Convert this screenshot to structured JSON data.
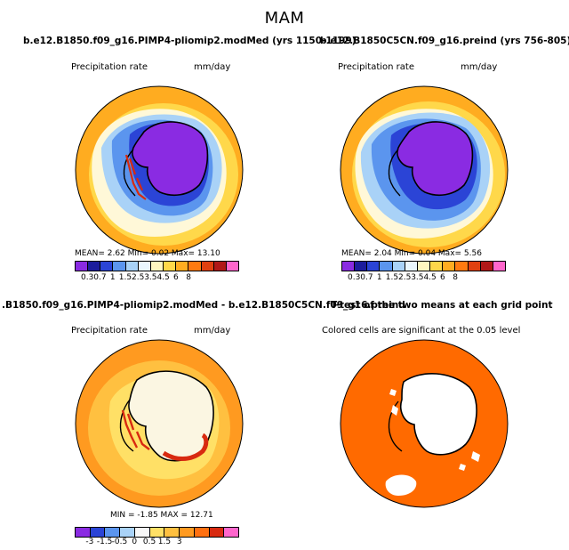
{
  "title": "MAM",
  "panels": {
    "top_left": {
      "title": "b.e12.B1850.f09_g16.PIMP4-pliomip2.modMed (yrs 1150-1199)",
      "variable": "Precipitation rate",
      "units": "mm/day",
      "stats": "MEAN=    2.62   Min=     0.02   Max=   13.10"
    },
    "top_right": {
      "title": "b.e12.B1850C5CN.f09_g16.preind (yrs 756-805)",
      "variable": "Precipitation rate",
      "units": "mm/day",
      "stats": "MEAN=    2.04   Min=     0.04   Max=     5.56"
    },
    "bottom_left": {
      "title": ".B1850.f09_g16.PIMP4-pliomip2.modMed - b.e12.B1850C5CN.f09_g16.preind",
      "variable": "Precipitation rate",
      "units": "mm/day",
      "stats": "MIN = -1.85 MAX =  12.71"
    },
    "bottom_right": {
      "title": "T-test of the two means at each grid point",
      "subtitle": "Colored cells are significant at the 0.05 level"
    }
  },
  "colorbar_abs": {
    "labels": [
      "0.3",
      "0.7",
      "1",
      "1.5",
      "2.5",
      "3.5",
      "4.5",
      "6",
      "8"
    ],
    "colors": [
      "#8a2be2",
      "#1c1c9c",
      "#2b44d6",
      "#5b95ee",
      "#a9d2f7",
      "#eaf6fd",
      "#fff6c0",
      "#ffd84a",
      "#ffac20",
      "#ff7a10",
      "#e04010",
      "#b01818",
      "#ff66cc"
    ]
  },
  "colorbar_diff": {
    "labels": [
      "-3",
      "-1.5",
      "-0.5",
      "0",
      "0.5",
      "1.5",
      "3"
    ],
    "colors": [
      "#8a2be2",
      "#2b44d6",
      "#5b95ee",
      "#a9d2f7",
      "#f7f7f7",
      "#ffe066",
      "#ffc040",
      "#ff9a20",
      "#ff7010",
      "#d82a10",
      "#ff66cc"
    ]
  },
  "map_colors": {
    "land_purple": "#8a2be2",
    "deep_blue": "#2b44d6",
    "mid_blue": "#5b95ee",
    "light_blue": "#a9d2f7",
    "pale": "#fff8d8",
    "yellow": "#ffd84a",
    "orange": "#ffac20",
    "diff_orange": "#ff9a20",
    "diff_pale": "#fbf6e2",
    "sig_orange": "#ff6a00",
    "red": "#d82a10"
  }
}
